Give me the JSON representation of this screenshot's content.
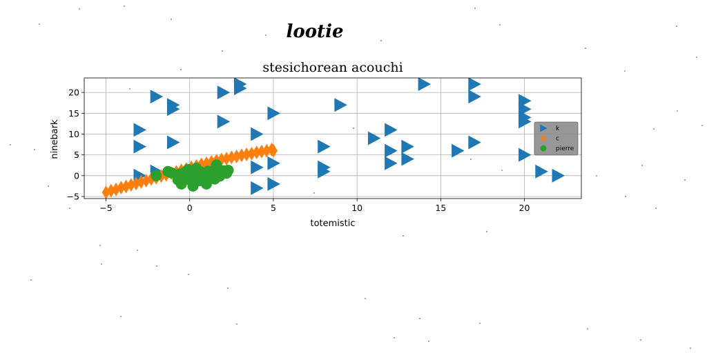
{
  "suptitle": "lootie",
  "chart_data": {
    "type": "scatter",
    "title": "stesichorean acouchi",
    "xlabel": "totemistic",
    "ylabel": "ninebark",
    "xlim": [
      -6.3,
      23.4
    ],
    "ylim": [
      -5.5,
      23.5
    ],
    "xticks": [
      -5,
      0,
      5,
      10,
      15,
      20
    ],
    "yticks": [
      -5,
      0,
      5,
      10,
      15,
      20
    ],
    "grid": true,
    "legend_position": "right",
    "series": [
      {
        "name": "k",
        "marker": "triangle-right",
        "color": "#1f77b4",
        "points": [
          [
            -2,
            19
          ],
          [
            -1,
            17
          ],
          [
            -1,
            16
          ],
          [
            2,
            20
          ],
          [
            3,
            22
          ],
          [
            3,
            21
          ],
          [
            5,
            15
          ],
          [
            2,
            13
          ],
          [
            -3,
            11
          ],
          [
            4,
            10
          ],
          [
            -3,
            7
          ],
          [
            -1,
            8
          ],
          [
            4,
            2
          ],
          [
            5,
            3
          ],
          [
            -3,
            0
          ],
          [
            -2,
            1
          ],
          [
            4,
            -3
          ],
          [
            5,
            -2
          ],
          [
            8,
            7
          ],
          [
            8,
            2
          ],
          [
            8,
            1
          ],
          [
            9,
            17
          ],
          [
            11,
            9
          ],
          [
            12,
            11
          ],
          [
            12,
            6
          ],
          [
            13,
            7
          ],
          [
            12,
            3
          ],
          [
            13,
            4
          ],
          [
            14,
            22
          ],
          [
            17,
            22
          ],
          [
            17,
            19
          ],
          [
            16,
            6
          ],
          [
            17,
            8
          ],
          [
            20,
            18
          ],
          [
            20,
            16
          ],
          [
            20,
            14
          ],
          [
            20,
            13
          ],
          [
            20,
            5
          ],
          [
            21,
            1
          ],
          [
            22,
            0
          ]
        ]
      },
      {
        "name": "c",
        "marker": "thin-diamond",
        "color": "#ff7f0e",
        "points": [
          [
            -5.0,
            -4.0
          ],
          [
            -4.7,
            -3.6
          ],
          [
            -4.4,
            -3.3
          ],
          [
            -4.1,
            -2.9
          ],
          [
            -3.8,
            -2.6
          ],
          [
            -3.5,
            -2.2
          ],
          [
            -3.2,
            -1.9
          ],
          [
            -2.9,
            -1.5
          ],
          [
            -2.6,
            -1.2
          ],
          [
            -2.3,
            -0.8
          ],
          [
            -2.0,
            -0.5
          ],
          [
            -1.7,
            -0.1
          ],
          [
            -1.4,
            0.2
          ],
          [
            -1.1,
            0.6
          ],
          [
            -0.8,
            0.9
          ],
          [
            -0.5,
            1.3
          ],
          [
            -0.2,
            1.6
          ],
          [
            0.1,
            2.0
          ],
          [
            0.4,
            2.3
          ],
          [
            0.7,
            2.7
          ],
          [
            1.0,
            3.0
          ],
          [
            1.3,
            3.3
          ],
          [
            1.6,
            3.6
          ],
          [
            1.9,
            3.9
          ],
          [
            2.2,
            4.1
          ],
          [
            2.5,
            4.4
          ],
          [
            2.8,
            4.6
          ],
          [
            3.1,
            4.9
          ],
          [
            3.4,
            5.1
          ],
          [
            3.7,
            5.3
          ],
          [
            4.0,
            5.6
          ],
          [
            4.3,
            5.8
          ],
          [
            4.6,
            6.0
          ],
          [
            4.9,
            6.3
          ],
          [
            5.0,
            6.0
          ]
        ]
      },
      {
        "name": "pierre",
        "marker": "circle",
        "color": "#2ca02c",
        "points": [
          [
            -2.0,
            0.0
          ],
          [
            -1.3,
            1.0
          ],
          [
            -1.1,
            0.7
          ],
          [
            -0.7,
            -1.0
          ],
          [
            -0.6,
            0.4
          ],
          [
            -0.5,
            -2.0
          ],
          [
            -0.3,
            0.8
          ],
          [
            -0.2,
            0.0
          ],
          [
            -0.1,
            1.5
          ],
          [
            0.0,
            -1.0
          ],
          [
            0.0,
            0.5
          ],
          [
            0.2,
            -2.5
          ],
          [
            0.3,
            -0.4
          ],
          [
            0.4,
            1.8
          ],
          [
            0.5,
            0.3
          ],
          [
            0.6,
            -1.2
          ],
          [
            0.7,
            0.9
          ],
          [
            0.8,
            -0.6
          ],
          [
            0.9,
            0.2
          ],
          [
            1.0,
            -2.0
          ],
          [
            1.1,
            1.1
          ],
          [
            1.2,
            -0.3
          ],
          [
            1.4,
            0.7
          ],
          [
            1.5,
            -0.8
          ],
          [
            1.6,
            2.6
          ],
          [
            1.7,
            0.4
          ],
          [
            1.8,
            -0.1
          ],
          [
            2.0,
            1.2
          ],
          [
            2.2,
            0.6
          ],
          [
            2.3,
            1.3
          ]
        ]
      }
    ]
  }
}
